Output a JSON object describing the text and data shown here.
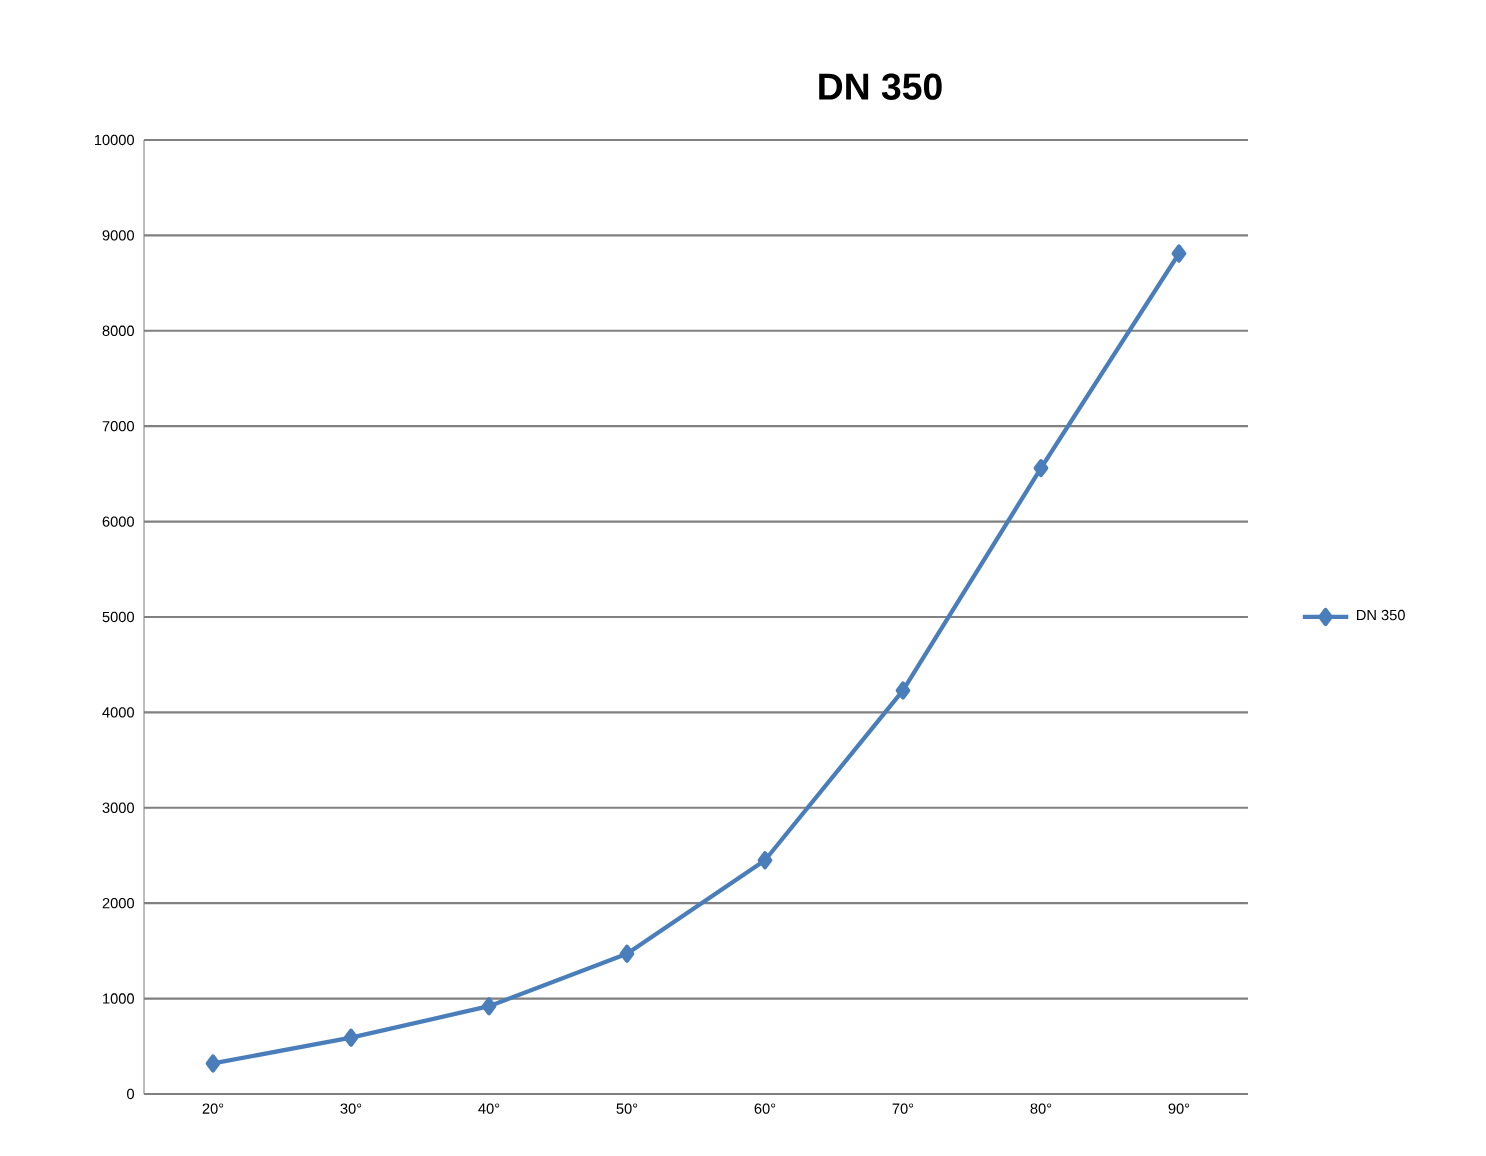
{
  "chart_data": {
    "type": "line",
    "title": "DN 350",
    "categories": [
      "20°",
      "30°",
      "40°",
      "50°",
      "60°",
      "70°",
      "80°",
      "90°"
    ],
    "series": [
      {
        "name": "DN 350",
        "color": "#4a7ebb",
        "values": [
          320,
          590,
          920,
          1470,
          2450,
          4230,
          6560,
          8810
        ]
      }
    ],
    "ylim": [
      0,
      10000
    ],
    "yticks": [
      0,
      1000,
      2000,
      3000,
      4000,
      5000,
      6000,
      7000,
      8000,
      9000,
      10000
    ],
    "grid": "y",
    "legend": "right",
    "marker": "diamond",
    "line_style": "solid"
  }
}
